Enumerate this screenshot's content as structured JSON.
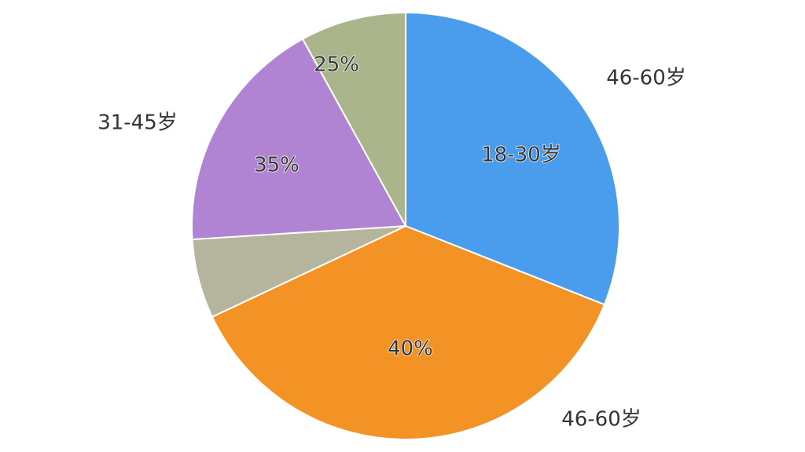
{
  "chart_data": {
    "type": "pie",
    "categories": [
      null,
      null,
      null,
      null,
      null
    ],
    "values": [
      31,
      37,
      6,
      18,
      8
    ],
    "colors": [
      "#4a9ded",
      "#f39325",
      "#b4b59c",
      "#b084d2",
      "#abb58c"
    ],
    "annotations": [
      "46-60岁",
      "18-30岁",
      "31-45岁",
      "35%",
      "25%",
      "40%",
      "46-60岁"
    ]
  }
}
